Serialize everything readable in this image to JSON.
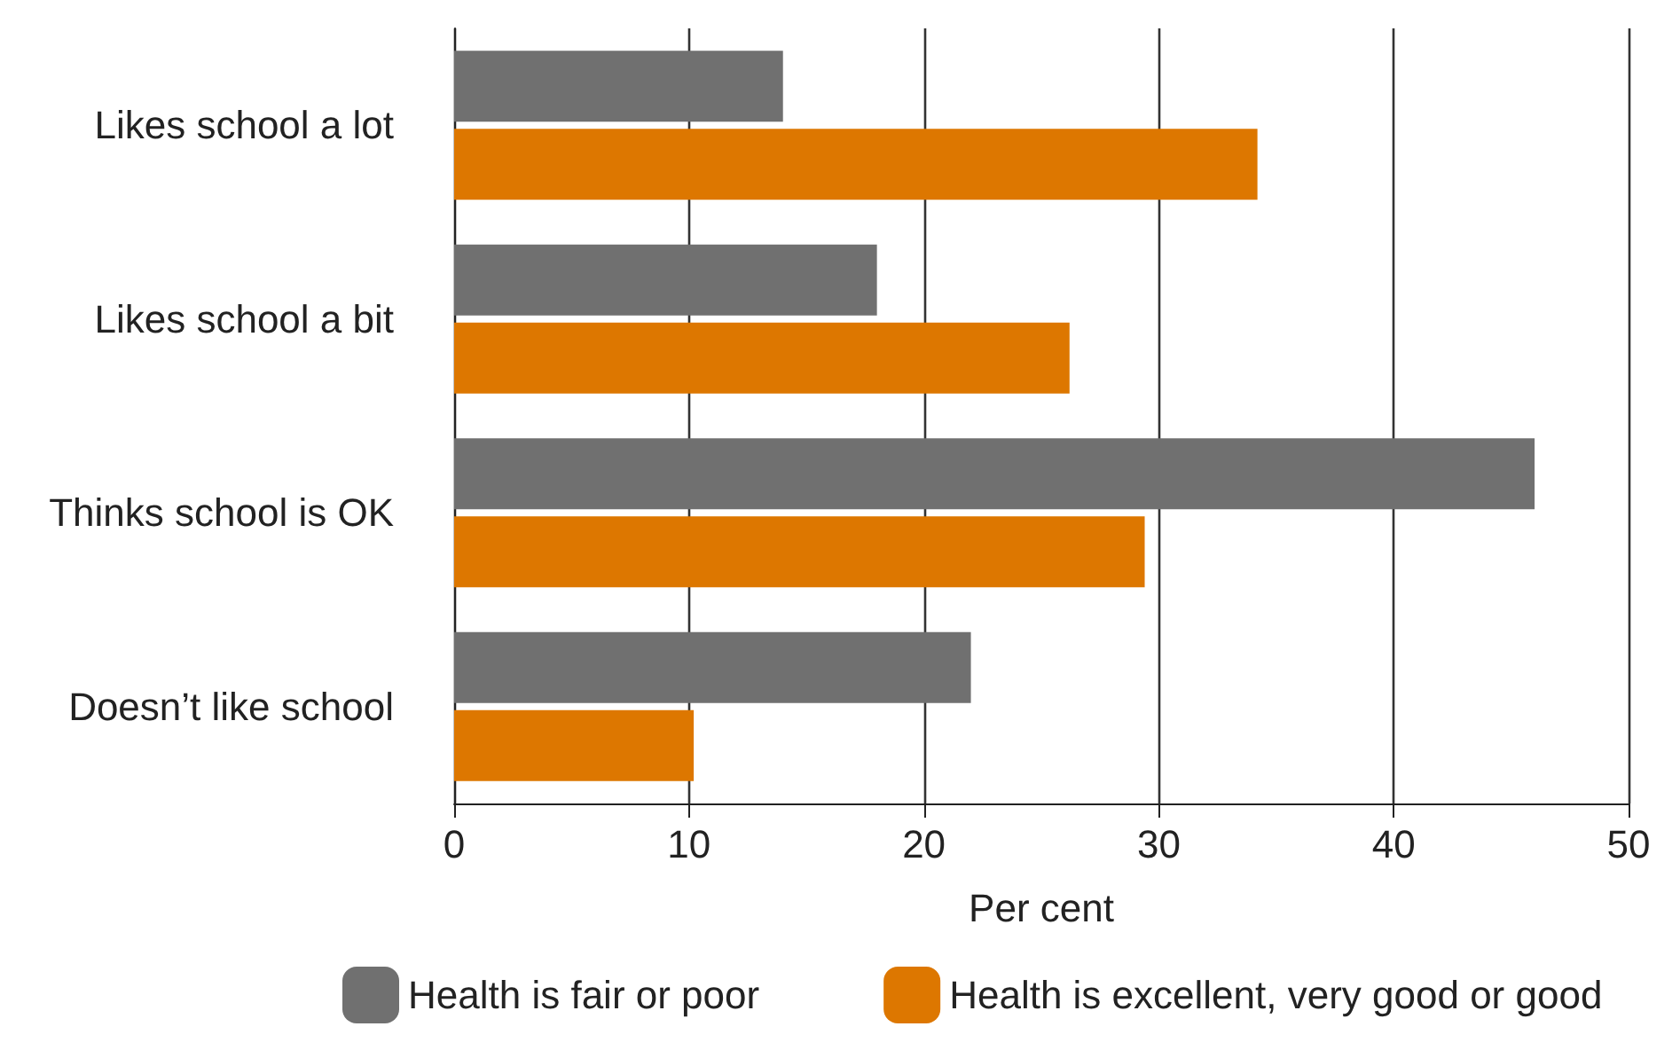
{
  "chart_data": {
    "type": "bar",
    "orientation": "horizontal",
    "categories": [
      "Likes school a lot",
      "Likes school a bit",
      "Thinks school is OK",
      "Doesn’t like school"
    ],
    "series": [
      {
        "name": "Health is fair or poor",
        "color": "#707070",
        "values": [
          14,
          18,
          46,
          22
        ]
      },
      {
        "name": "Health is excellent, very good or good",
        "color": "#dd7700",
        "values": [
          34.2,
          26.2,
          29.4,
          10.2
        ]
      }
    ],
    "xlabel": "Per cent",
    "xlim": [
      0,
      50
    ],
    "xticks": [
      0,
      10,
      20,
      30,
      40,
      50
    ],
    "grid": "x",
    "legend": "bottom"
  }
}
